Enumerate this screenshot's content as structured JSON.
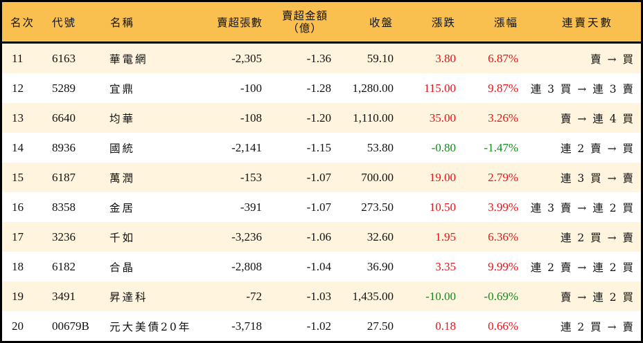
{
  "colors": {
    "header_bg": "#F9C04F",
    "row_odd_bg": "#FFF4DE",
    "row_even_bg": "#FFFFFF",
    "border": "#000000",
    "up": "#E8141A",
    "down": "#138A1C"
  },
  "header": {
    "rank": "名次",
    "code": "代號",
    "name": "名稱",
    "net_sell_volume": "賣超張數",
    "net_sell_amount_line1": "賣超金額",
    "net_sell_amount_line2": "（億）",
    "close": "收盤",
    "change": "漲跌",
    "change_pct": "漲幅",
    "streak": "連賣天數"
  },
  "rows": [
    {
      "rank": "11",
      "code": "6163",
      "name": "華電網",
      "volume": "-2,305",
      "amount": "-1.36",
      "close": "59.10",
      "change": "3.80",
      "change_pct": "6.87%",
      "direction": "up",
      "streak": "賣 → 買"
    },
    {
      "rank": "12",
      "code": "5289",
      "name": "宜鼎",
      "volume": "-100",
      "amount": "-1.28",
      "close": "1,280.00",
      "change": "115.00",
      "change_pct": "9.87%",
      "direction": "up",
      "streak": "連 3 買 → 連 3 賣"
    },
    {
      "rank": "13",
      "code": "6640",
      "name": "均華",
      "volume": "-108",
      "amount": "-1.20",
      "close": "1,110.00",
      "change": "35.00",
      "change_pct": "3.26%",
      "direction": "up",
      "streak": "賣 → 連 4 買"
    },
    {
      "rank": "14",
      "code": "8936",
      "name": "國統",
      "volume": "-2,141",
      "amount": "-1.15",
      "close": "53.80",
      "change": "-0.80",
      "change_pct": "-1.47%",
      "direction": "down",
      "streak": "連 2 賣 → 買"
    },
    {
      "rank": "15",
      "code": "6187",
      "name": "萬潤",
      "volume": "-153",
      "amount": "-1.07",
      "close": "700.00",
      "change": "19.00",
      "change_pct": "2.79%",
      "direction": "up",
      "streak": "連 3 買 → 賣"
    },
    {
      "rank": "16",
      "code": "8358",
      "name": "金居",
      "volume": "-391",
      "amount": "-1.07",
      "close": "273.50",
      "change": "10.50",
      "change_pct": "3.99%",
      "direction": "up",
      "streak": "連 3 賣 → 連 2 買"
    },
    {
      "rank": "17",
      "code": "3236",
      "name": "千如",
      "volume": "-3,236",
      "amount": "-1.06",
      "close": "32.60",
      "change": "1.95",
      "change_pct": "6.36%",
      "direction": "up",
      "streak": "連 2 買 → 賣"
    },
    {
      "rank": "18",
      "code": "6182",
      "name": "合晶",
      "volume": "-2,808",
      "amount": "-1.04",
      "close": "36.90",
      "change": "3.35",
      "change_pct": "9.99%",
      "direction": "up",
      "streak": "連 2 賣 → 連 2 買"
    },
    {
      "rank": "19",
      "code": "3491",
      "name": "昇達科",
      "volume": "-72",
      "amount": "-1.03",
      "close": "1,435.00",
      "change": "-10.00",
      "change_pct": "-0.69%",
      "direction": "down",
      "streak": "賣 → 連 2 買"
    },
    {
      "rank": "20",
      "code": "00679B",
      "name": "元大美債20年",
      "volume": "-3,718",
      "amount": "-1.02",
      "close": "27.50",
      "change": "0.18",
      "change_pct": "0.66%",
      "direction": "up",
      "streak": "連 2 買 → 賣"
    }
  ]
}
